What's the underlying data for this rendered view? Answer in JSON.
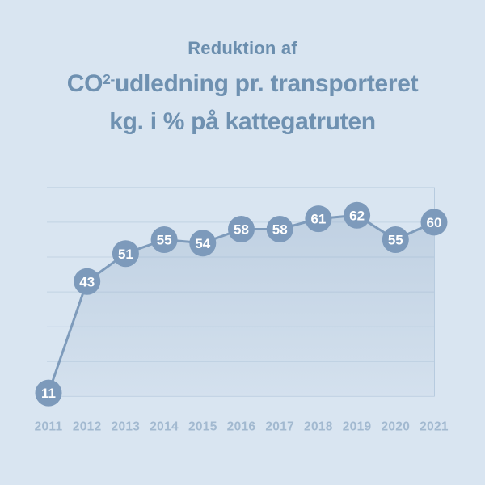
{
  "header": {
    "subtitle": "Reduktion af",
    "title_line1_pre": "CO",
    "title_sup": "2-",
    "title_line1_rest": "udledning pr. transporteret",
    "title_line2": "kg. i % på kattegatruten"
  },
  "colors": {
    "background": "#d9e5f1",
    "title_text": "#6f91b1",
    "subtitle_text": "#6b8eae",
    "accent": "#7d9abb",
    "line": "#7e9bbb",
    "marker_fill": "#7d9abb",
    "marker_text": "#ffffff",
    "gridline": "#c2d3e4",
    "plot_right_border": "#b7cbdf",
    "tick_label": "#a2b9d0",
    "area_fill": "#8fa9c5"
  },
  "chart_data": {
    "type": "area",
    "title": "Reduktion af CO2-udledning pr. transporteret kg. i % på kattegatruten",
    "categories": [
      "2011",
      "2012",
      "2013",
      "2014",
      "2015",
      "2016",
      "2017",
      "2018",
      "2019",
      "2020",
      "2021"
    ],
    "values": [
      11,
      43,
      51,
      55,
      54,
      58,
      58,
      61,
      62,
      55,
      60
    ],
    "xlabel": "",
    "ylabel": "",
    "ylim": [
      0,
      75
    ],
    "gridline_values": [
      10,
      20,
      30,
      40,
      50,
      60,
      70
    ],
    "grid": true,
    "legend": false,
    "data_labels": true,
    "unit": "%"
  }
}
